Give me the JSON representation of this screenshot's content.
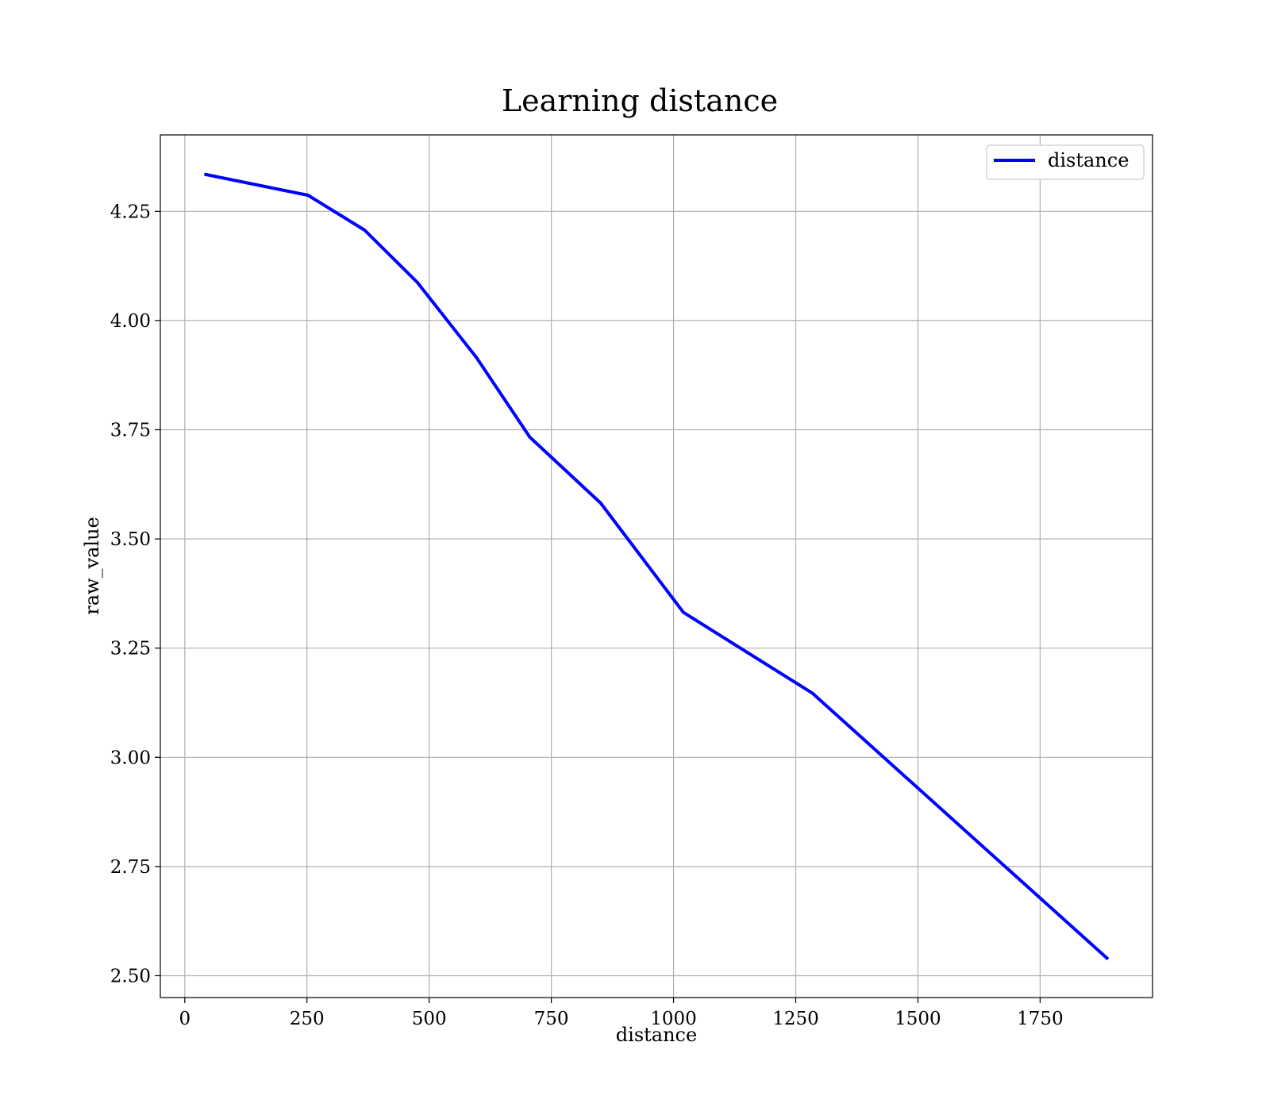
{
  "chart_data": {
    "type": "line",
    "title": "Learning distance",
    "xlabel": "distance",
    "ylabel": "raw_value",
    "xlim": [
      -50,
      1980
    ],
    "ylim": [
      2.45,
      4.425
    ],
    "xticks": [
      0,
      250,
      500,
      750,
      1000,
      1250,
      1500,
      1750
    ],
    "xtick_labels": [
      "0",
      "250",
      "500",
      "750",
      "1000",
      "1250",
      "1500",
      "1750"
    ],
    "yticks": [
      2.5,
      2.75,
      3.0,
      3.25,
      3.5,
      3.75,
      4.0,
      4.25
    ],
    "ytick_labels": [
      "2.50",
      "2.75",
      "3.00",
      "3.25",
      "3.50",
      "3.75",
      "4.00",
      "4.25"
    ],
    "grid": true,
    "legend_position": "top-right",
    "series": [
      {
        "name": "distance",
        "color": "#0000ff",
        "x": [
          40,
          252,
          368,
          476,
          597,
          706,
          851,
          1020,
          1284,
          1889
        ],
        "y": [
          4.335,
          4.287,
          4.207,
          4.087,
          3.915,
          3.733,
          3.582,
          3.332,
          3.147,
          2.538
        ]
      }
    ]
  }
}
